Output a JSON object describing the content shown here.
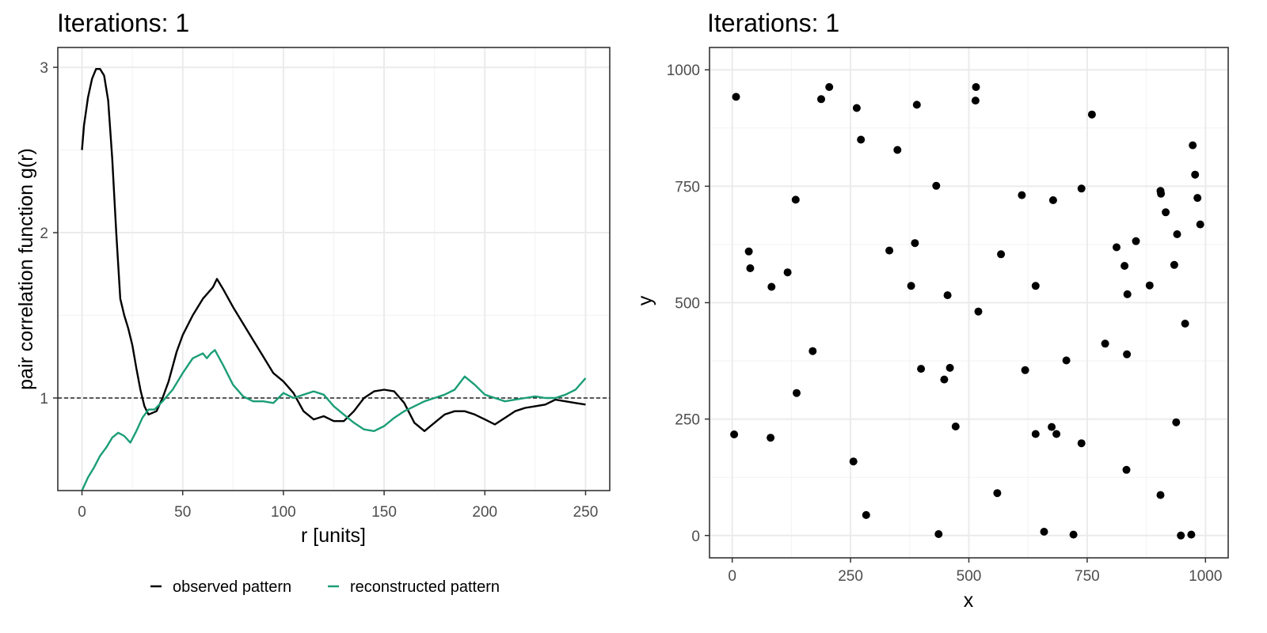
{
  "chart_data": [
    {
      "type": "line",
      "title": "Iterations: 1",
      "xlabel": "r [units]",
      "ylabel": "pair correlation function g(r)",
      "xlim": [
        -12,
        262
      ],
      "ylim": [
        0.44,
        3.12
      ],
      "x_ticks": [
        0,
        50,
        100,
        150,
        200,
        250
      ],
      "x_tick_labels": [
        "0",
        "50",
        "100",
        "150",
        "200",
        "250"
      ],
      "y_ticks": [
        1,
        2,
        3
      ],
      "y_tick_labels": [
        "1",
        "2",
        "3"
      ],
      "grid": true,
      "reference_line": 1,
      "legend_position": "bottom",
      "series": [
        {
          "name": "observed pattern",
          "color": "#000000",
          "x": [
            0,
            1,
            3,
            5,
            7,
            9,
            11,
            13,
            15,
            17,
            19,
            21,
            23,
            25,
            27,
            29,
            31,
            33,
            35,
            37,
            40,
            43,
            47,
            50,
            55,
            60,
            65,
            67,
            70,
            75,
            80,
            85,
            90,
            95,
            100,
            105,
            110,
            115,
            120,
            125,
            130,
            135,
            140,
            145,
            150,
            155,
            160,
            165,
            170,
            175,
            180,
            185,
            190,
            195,
            200,
            205,
            210,
            215,
            220,
            225,
            230,
            235,
            240,
            245,
            250
          ],
          "y": [
            2.5,
            2.65,
            2.82,
            2.93,
            2.99,
            2.99,
            2.95,
            2.8,
            2.45,
            2.0,
            1.6,
            1.5,
            1.42,
            1.32,
            1.18,
            1.05,
            0.95,
            0.9,
            0.91,
            0.92,
            1.0,
            1.1,
            1.28,
            1.38,
            1.5,
            1.6,
            1.67,
            1.72,
            1.66,
            1.55,
            1.45,
            1.35,
            1.25,
            1.15,
            1.1,
            1.03,
            0.92,
            0.87,
            0.89,
            0.86,
            0.86,
            0.92,
            1.0,
            1.04,
            1.05,
            1.04,
            0.97,
            0.85,
            0.8,
            0.85,
            0.9,
            0.92,
            0.92,
            0.9,
            0.87,
            0.84,
            0.88,
            0.92,
            0.94,
            0.95,
            0.96,
            0.99,
            0.98,
            0.97,
            0.96
          ]
        },
        {
          "name": "reconstructed pattern",
          "color": "#1b9e77",
          "x": [
            0,
            3,
            6,
            9,
            12,
            15,
            18,
            21,
            24,
            27,
            30,
            33,
            36,
            40,
            45,
            50,
            55,
            60,
            62,
            64,
            66,
            70,
            75,
            80,
            85,
            90,
            95,
            100,
            105,
            110,
            115,
            120,
            125,
            130,
            135,
            140,
            145,
            150,
            155,
            160,
            165,
            170,
            175,
            180,
            185,
            190,
            195,
            200,
            205,
            210,
            215,
            220,
            225,
            230,
            235,
            240,
            245,
            250
          ],
          "y": [
            0.44,
            0.52,
            0.58,
            0.65,
            0.7,
            0.76,
            0.79,
            0.77,
            0.73,
            0.8,
            0.88,
            0.93,
            0.93,
            0.98,
            1.05,
            1.15,
            1.24,
            1.27,
            1.24,
            1.27,
            1.29,
            1.2,
            1.08,
            1.01,
            0.98,
            0.98,
            0.97,
            1.03,
            1.0,
            1.02,
            1.04,
            1.02,
            0.95,
            0.9,
            0.85,
            0.81,
            0.8,
            0.83,
            0.88,
            0.92,
            0.95,
            0.98,
            1.0,
            1.02,
            1.05,
            1.13,
            1.08,
            1.02,
            1.0,
            0.98,
            0.99,
            1.0,
            1.01,
            1.0,
            1.0,
            1.02,
            1.05,
            1.12
          ]
        }
      ]
    },
    {
      "type": "scatter",
      "title": "Iterations: 1",
      "xlabel": "x",
      "ylabel": "y",
      "xlim": [
        -48,
        1048
      ],
      "ylim": [
        -48,
        1048
      ],
      "x_ticks": [
        0,
        250,
        500,
        750,
        1000
      ],
      "x_tick_labels": [
        "0",
        "250",
        "500",
        "750",
        "1000"
      ],
      "y_ticks": [
        0,
        250,
        500,
        750,
        1000
      ],
      "y_tick_labels": [
        "0",
        "250",
        "500",
        "750",
        "1000"
      ],
      "grid": true,
      "point_color": "#000000",
      "points": [
        [
          8,
          942
        ],
        [
          205,
          963
        ],
        [
          188,
          937
        ],
        [
          263,
          918
        ],
        [
          272,
          850
        ],
        [
          349,
          828
        ],
        [
          390,
          925
        ],
        [
          515,
          963
        ],
        [
          514,
          934
        ],
        [
          760,
          904
        ],
        [
          35,
          610
        ],
        [
          38,
          574
        ],
        [
          83,
          534
        ],
        [
          117,
          565
        ],
        [
          134,
          721
        ],
        [
          332,
          612
        ],
        [
          386,
          628
        ],
        [
          378,
          536
        ],
        [
          431,
          751
        ],
        [
          455,
          516
        ],
        [
          520,
          481
        ],
        [
          568,
          604
        ],
        [
          612,
          731
        ],
        [
          641,
          536
        ],
        [
          678,
          720
        ],
        [
          738,
          745
        ],
        [
          170,
          396
        ],
        [
          136,
          306
        ],
        [
          399,
          358
        ],
        [
          448,
          335
        ],
        [
          460,
          360
        ],
        [
          619,
          355
        ],
        [
          706,
          376
        ],
        [
          788,
          412
        ],
        [
          812,
          619
        ],
        [
          829,
          579
        ],
        [
          835,
          518
        ],
        [
          853,
          632
        ],
        [
          882,
          537
        ],
        [
          905,
          740
        ],
        [
          906,
          734
        ],
        [
          916,
          694
        ],
        [
          934,
          581
        ],
        [
          940,
          647
        ],
        [
          957,
          455
        ],
        [
          973,
          838
        ],
        [
          978,
          775
        ],
        [
          983,
          725
        ],
        [
          989,
          668
        ],
        [
          834,
          389
        ],
        [
          4,
          217
        ],
        [
          81,
          210
        ],
        [
          256,
          159
        ],
        [
          283,
          44
        ],
        [
          472,
          234
        ],
        [
          436,
          3
        ],
        [
          560,
          91
        ],
        [
          641,
          218
        ],
        [
          675,
          233
        ],
        [
          685,
          218
        ],
        [
          738,
          198
        ],
        [
          659,
          8
        ],
        [
          721,
          2
        ],
        [
          833,
          141
        ],
        [
          938,
          243
        ],
        [
          905,
          87
        ],
        [
          948,
          0
        ],
        [
          970,
          2
        ]
      ]
    }
  ]
}
